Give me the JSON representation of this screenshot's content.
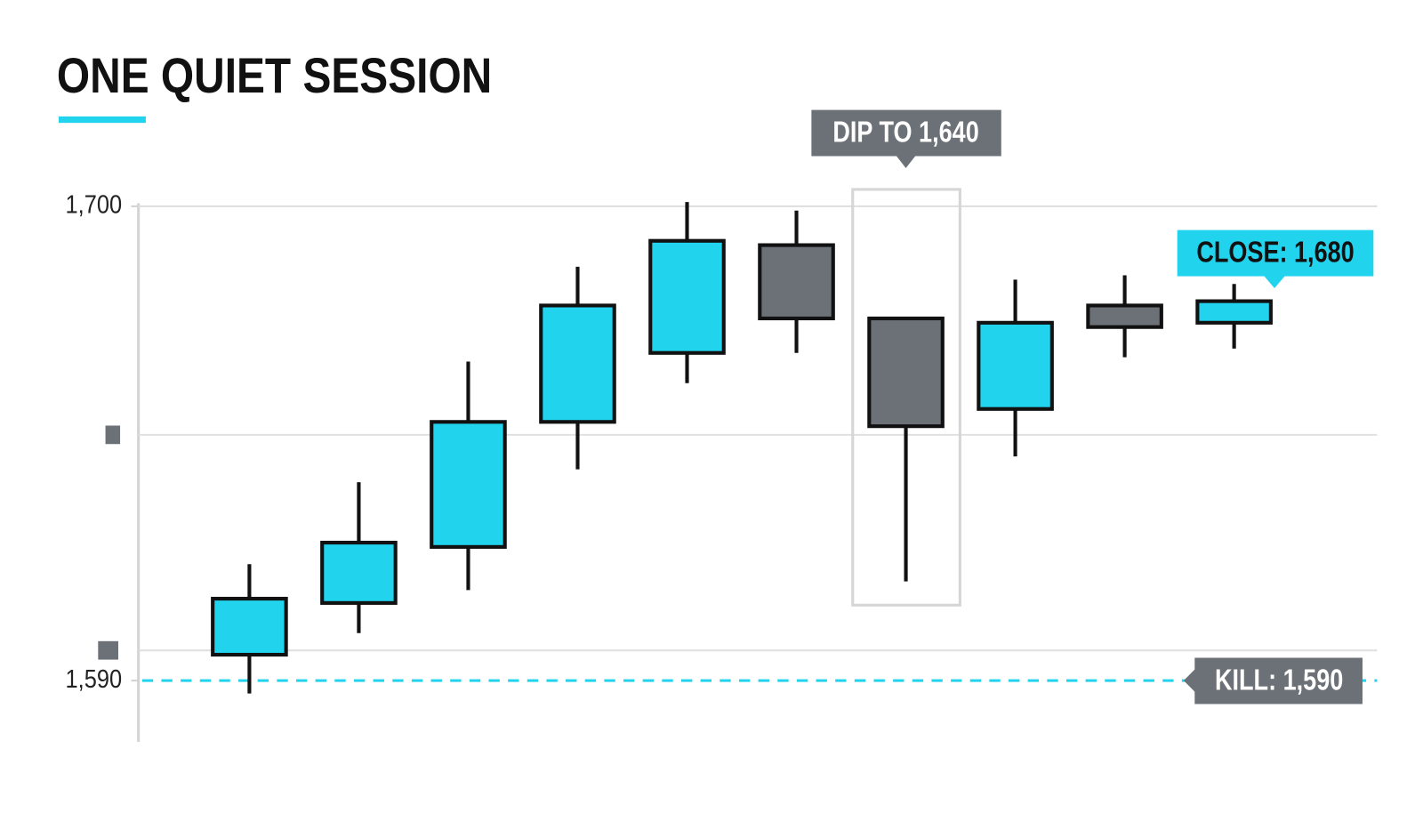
{
  "chart_data": {
    "type": "candlestick",
    "title": "ONE QUIET SESSION",
    "open": [
      1596,
      1608,
      1621,
      1650,
      1666,
      1691,
      1674,
      1653,
      1677,
      1673
    ],
    "high": [
      1617,
      1636,
      1664,
      1686,
      1701,
      1699,
      1674,
      1683,
      1684,
      1682
    ],
    "low": [
      1587,
      1601,
      1611,
      1639,
      1659,
      1666,
      1613,
      1642,
      1665,
      1667
    ],
    "close": [
      1609,
      1622,
      1650,
      1677,
      1692,
      1674,
      1649,
      1673,
      1672,
      1678
    ],
    "up_color": "#22d3ee",
    "down_color": "#6b7177",
    "ylim": [
      1576,
      1702
    ],
    "yticks": [
      {
        "value": 1700,
        "label": "1,700"
      },
      {
        "value": 1590,
        "label": "1,590"
      }
    ],
    "grid_lines": [
      1647,
      1597
    ],
    "dip_label": "DIP TO 1,640",
    "close_label": "CLOSE: 1,680",
    "kill_level": 1590,
    "kill_label": "KILL: 1,590"
  }
}
